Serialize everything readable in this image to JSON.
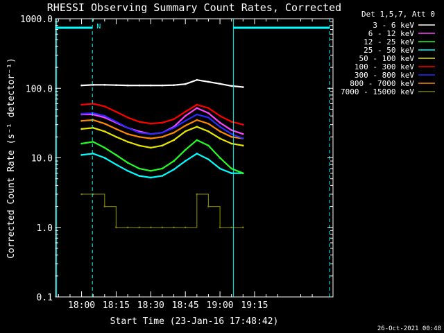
{
  "chart_data": {
    "type": "line",
    "title": "RHESSI Observing Summary Count Rates, Corrected",
    "xlabel": "Start Time (23-Jan-16 17:48:42)",
    "ylabel": "Corrected Count Rate (s⁻¹ detector⁻¹)",
    "yscale": "log",
    "ylim": [
      0.1,
      1000
    ],
    "xlim_minutes": [
      -11.3,
      109
    ],
    "x_tick_labels": [
      "18:00",
      "18:15",
      "18:30",
      "18:45",
      "19:00",
      "19:15"
    ],
    "x_tick_minutes": [
      0,
      15,
      30,
      45,
      60,
      75
    ],
    "y_tick_labels": [
      "0.1",
      "1.0",
      "10.0",
      "100.0",
      "1000.0"
    ],
    "y_tick_values": [
      0.1,
      1,
      10,
      100,
      1000
    ],
    "legend_title": "Det 1,5,7, Att 0",
    "legend_position": "top-right",
    "x_minutes": [
      0,
      5,
      10,
      15,
      20,
      25,
      30,
      35,
      40,
      45,
      50,
      55,
      60,
      65,
      70
    ],
    "series": [
      {
        "name": "3 - 6 keV",
        "color": "#ffffff",
        "values": [
          110,
          112,
          112,
          111,
          110,
          110,
          110,
          110,
          111,
          115,
          132,
          124,
          116,
          108,
          104
        ]
      },
      {
        "name": "6 - 12 keV",
        "color": "#ff44ff",
        "values": [
          42,
          42,
          38,
          32,
          27,
          24,
          22,
          23,
          28,
          40,
          52,
          44,
          32,
          25,
          22
        ]
      },
      {
        "name": "12 - 25 keV",
        "color": "#22ff22",
        "values": [
          16,
          17,
          14,
          11,
          8.5,
          7,
          6.5,
          7,
          9,
          13,
          18,
          15,
          10,
          7,
          6
        ]
      },
      {
        "name": "25 - 50 keV",
        "color": "#00ffff",
        "values": [
          11,
          11.5,
          10,
          8,
          6.5,
          5.5,
          5.2,
          5.5,
          6.8,
          9,
          11.5,
          9.5,
          7,
          6,
          6
        ]
      },
      {
        "name": "50 - 100 keV",
        "color": "#e8e800",
        "values": [
          26,
          27,
          24,
          20,
          17,
          15,
          14,
          15,
          18,
          24,
          28,
          24,
          19,
          16,
          15
        ]
      },
      {
        "name": "100 - 300 keV",
        "color": "#ff0000",
        "values": [
          58,
          60,
          55,
          46,
          38,
          33,
          31,
          32,
          36,
          46,
          58,
          52,
          40,
          33,
          30
        ]
      },
      {
        "name": "300 - 800 keV",
        "color": "#2a2aff",
        "values": [
          43,
          44,
          40,
          33,
          27,
          23,
          22,
          23,
          27,
          34,
          42,
          38,
          28,
          22,
          19
        ]
      },
      {
        "name": "800 - 7000 keV",
        "color": "#ff8800",
        "values": [
          34,
          35,
          31,
          26,
          22,
          20,
          19,
          20,
          23,
          29,
          35,
          31,
          24,
          20,
          19
        ]
      },
      {
        "name": "7000 - 15000 keV",
        "color": "#808000",
        "values": [
          3,
          3,
          2,
          1,
          1,
          1,
          1,
          1,
          1,
          1,
          3,
          2,
          1,
          1,
          1
        ]
      }
    ],
    "markers": [
      {
        "name": "N",
        "color": "#00ffff",
        "x_minutes": 4.7,
        "style": "dashed",
        "label_text": "N"
      },
      {
        "color": "#00ffff",
        "x_minutes": 107.5,
        "style": "dashed"
      },
      {
        "color": "#00ffff",
        "x_minutes": 65.8,
        "style": "solid"
      },
      {
        "color": "#00ffff",
        "x_minutes": -10.8,
        "style": "solid"
      }
    ]
  },
  "footer": {
    "timestamp": "26-Oct-2021 00:48"
  }
}
